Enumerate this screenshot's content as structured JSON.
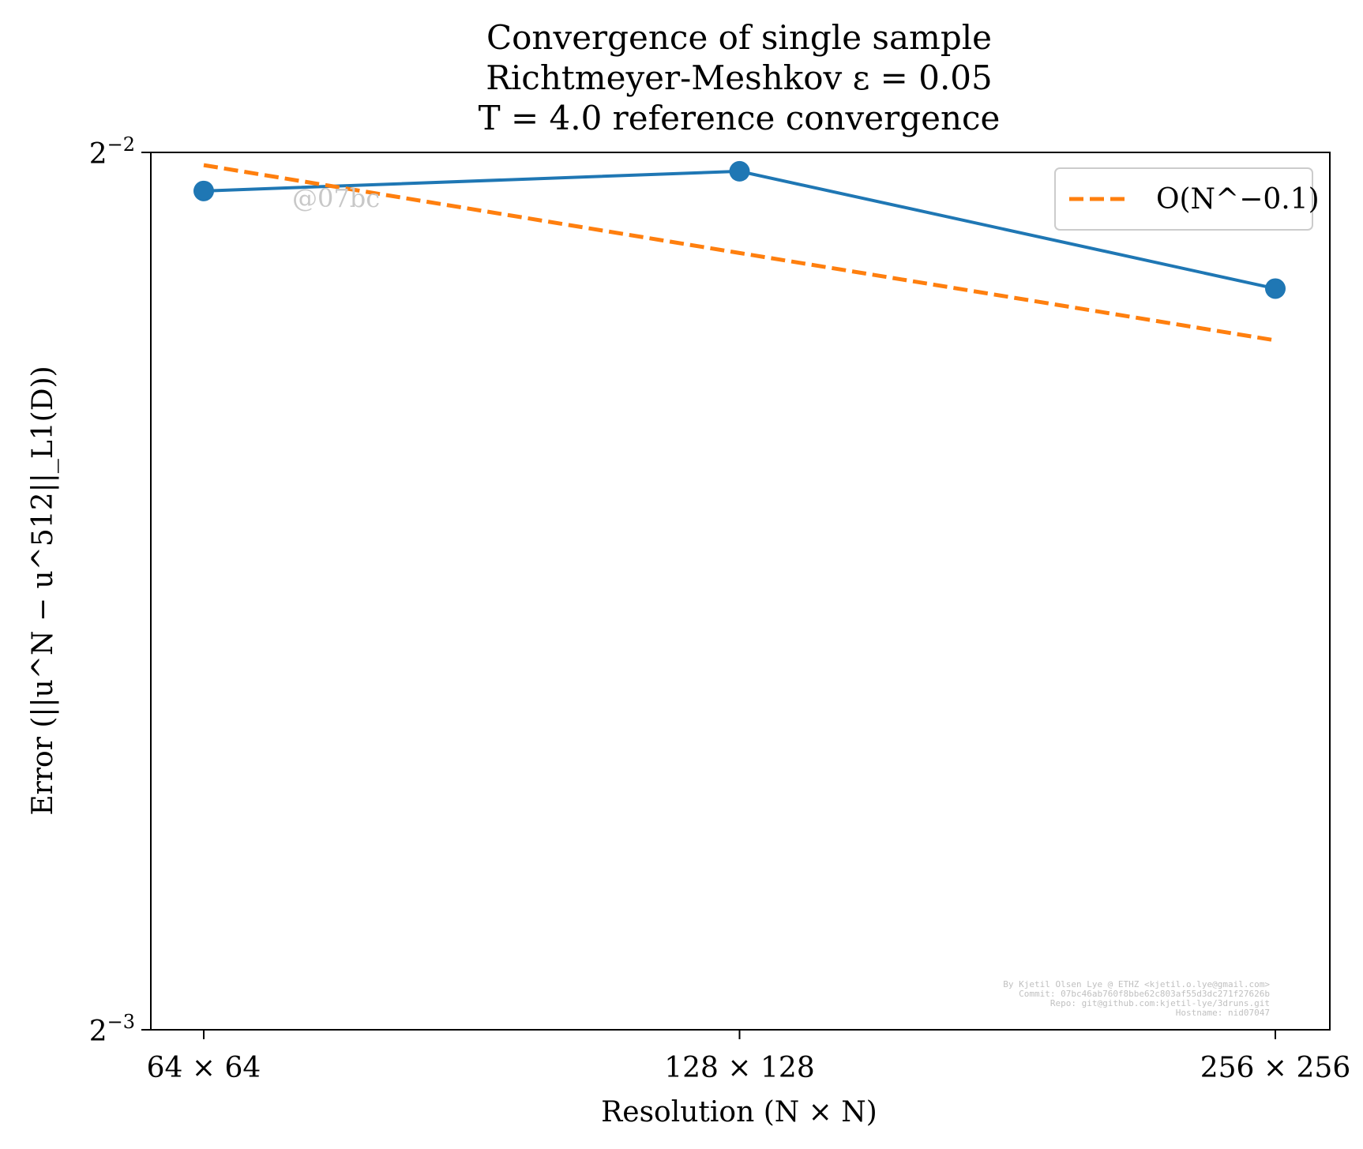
{
  "chart_data": {
    "type": "line",
    "title": [
      "Convergence of single sample",
      "Richtmeyer-Meshkov ε = 0.05",
      "T = 4.0 reference convergence"
    ],
    "xlabel": "Resolution (N × N)",
    "ylabel": "Error (||u^N − u^512||_L1(D))",
    "x": [
      64,
      128,
      256
    ],
    "x_tick_labels": [
      "64 × 64",
      "128 × 128",
      "256 × 256"
    ],
    "x_scale": "log2",
    "y_scale": "log2",
    "ylim": [
      0.125,
      0.25
    ],
    "y_ticks": [
      {
        "value": 0.25,
        "base": "2",
        "exp": "−2"
      },
      {
        "value": 0.125,
        "base": "2",
        "exp": "−3"
      }
    ],
    "series": [
      {
        "values": [
          0.2425,
          0.2463,
          0.2245
        ],
        "color": "#1f77b4",
        "style": "solid",
        "marker": "circle"
      },
      {
        "name": "O(N^−0.1)",
        "values": [
          0.2475,
          0.2309,
          0.2155
        ],
        "color": "#ff7f0e",
        "style": "dashed",
        "marker": "none"
      }
    ],
    "legend": {
      "placement": "upper-right",
      "entry_text": "O(N^−0.1)"
    },
    "grid": false,
    "annotations": {
      "watermark": "@07bc",
      "credits": [
        "By Kjetil Olsen Lye @ ETHZ <kjetil.o.lye@gmail.com>",
        "Commit: 07bc46ab760f8bbe62c803af55d3dc271f27626b",
        "Repo: git@github.com:kjetil-lye/3druns.git",
        "Hostname: nid07047"
      ]
    }
  }
}
